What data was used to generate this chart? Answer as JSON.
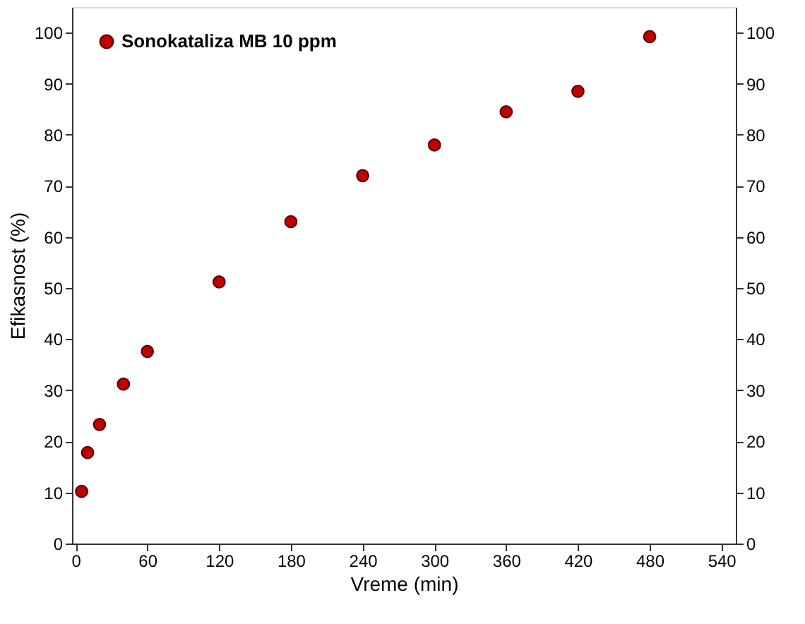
{
  "chart_data": {
    "type": "scatter",
    "xlabel": "Vreme (min)",
    "ylabel": "Efikasnost (%)",
    "x": [
      5,
      10,
      20,
      40,
      60,
      120,
      180,
      240,
      300,
      360,
      420,
      480
    ],
    "series": [
      {
        "name": "Sonokataliza MB 10 ppm",
        "color": "#c00000",
        "values": [
          10.2,
          17.8,
          23.3,
          31.2,
          37.6,
          51.2,
          63,
          72,
          78,
          84.5,
          88.5,
          99.2
        ]
      }
    ],
    "xlim": [
      -3,
      552
    ],
    "xticks": [
      0,
      60,
      120,
      180,
      240,
      300,
      360,
      420,
      480,
      540
    ],
    "ylim": [
      0,
      105
    ],
    "yticks": [
      0,
      10,
      20,
      30,
      40,
      50,
      60,
      70,
      80,
      90,
      100
    ],
    "y2lim": [
      0,
      105
    ],
    "y2ticks": [
      0,
      10,
      20,
      30,
      40,
      50,
      60,
      70,
      80,
      90,
      100
    ],
    "marker": "circle",
    "legend": "top left",
    "grid": false
  }
}
